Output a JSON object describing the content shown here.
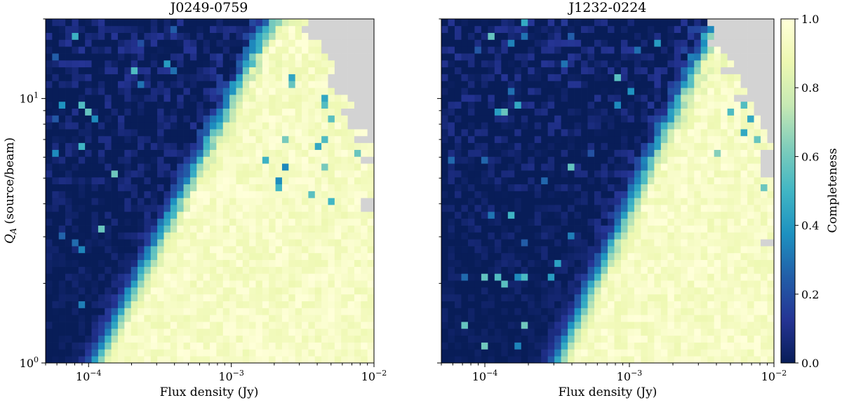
{
  "chart_data": [
    {
      "type": "heatmap",
      "title": "J0249-0759",
      "xlabel": "Flux density (Jy)",
      "ylabel": "Q_A (source/beam)",
      "ylabel_main": "Q",
      "ylabel_sub": "A",
      "ylabel_rest": " (source/beam)",
      "xscale": "log",
      "yscale": "log",
      "xlim": [
        5e-05,
        0.01
      ],
      "ylim": [
        1,
        20
      ],
      "x_ticks": [
        {
          "value": 0.0001,
          "base": "10",
          "exp": "−4"
        },
        {
          "value": 0.001,
          "base": "10",
          "exp": "−3"
        },
        {
          "value": 0.01,
          "base": "10",
          "exp": "−2"
        }
      ],
      "y_ticks": [
        {
          "value": 1,
          "base": "10",
          "exp": "0"
        },
        {
          "value": 10,
          "base": "10",
          "exp": "1"
        }
      ],
      "bins": {
        "nx": 50,
        "ny": 50
      },
      "transition": {
        "at_q1_log10_flux": -3.95,
        "slope_per_decade_q": 0.95,
        "width_dex": 0.13
      },
      "blank_cells_color": "#d3d3d3",
      "high_flux_edge_log10": -2.0
    },
    {
      "type": "heatmap",
      "title": "J1232-0224",
      "xlabel": "Flux density (Jy)",
      "ylabel": "",
      "xscale": "log",
      "yscale": "log",
      "xlim": [
        5e-05,
        0.01
      ],
      "ylim": [
        1,
        20
      ],
      "x_ticks": [
        {
          "value": 0.0001,
          "base": "10",
          "exp": "−4"
        },
        {
          "value": 0.001,
          "base": "10",
          "exp": "−3"
        },
        {
          "value": 0.01,
          "base": "10",
          "exp": "−2"
        }
      ],
      "y_ticks": [],
      "bins": {
        "nx": 50,
        "ny": 50
      },
      "transition": {
        "at_q1_log10_flux": -3.5,
        "slope_per_decade_q": 0.85,
        "width_dex": 0.13
      },
      "blank_cells_color": "#d3d3d3",
      "high_flux_edge_log10": -2.0
    }
  ],
  "colorbar": {
    "label": "Completeness",
    "range": [
      0,
      1
    ],
    "ticks": [
      "0.0",
      "0.2",
      "0.4",
      "0.6",
      "0.8",
      "1.0"
    ],
    "colormap": "YlGnBu_r",
    "stops": [
      "#081d58",
      "#253494",
      "#225ea8",
      "#1d91c0",
      "#41b6c4",
      "#7fcdbb",
      "#c7e9b4",
      "#edf8b1",
      "#ffffd9"
    ]
  }
}
